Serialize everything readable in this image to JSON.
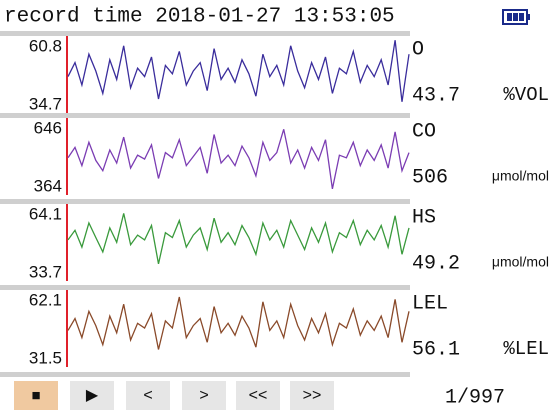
{
  "header": {
    "text": "record time 2018-01-27 13:53:05"
  },
  "chart_data": [
    {
      "type": "line",
      "name": "O",
      "current": 43.7,
      "unit": "%VOL",
      "color": "#3a2d9c",
      "ylim": [
        34.7,
        60.8
      ],
      "yticks": [
        34.7,
        60.8
      ],
      "values": [
        47,
        52,
        44,
        55,
        49,
        41,
        53,
        46,
        58,
        43,
        50,
        47,
        54,
        39,
        51,
        48,
        56,
        44,
        49,
        52,
        42,
        57,
        46,
        50,
        45,
        53,
        48,
        40,
        55,
        47,
        51,
        44,
        58,
        49,
        43,
        52,
        46,
        54,
        41,
        50,
        48,
        56,
        45,
        51,
        47,
        53,
        44,
        60,
        38,
        55
      ]
    },
    {
      "type": "line",
      "name": "CO",
      "current": 506,
      "unit": "μmol/mol",
      "color": "#7b3db3",
      "ylim": [
        364,
        646
      ],
      "yticks": [
        364,
        646
      ],
      "values": [
        500,
        540,
        470,
        560,
        490,
        450,
        530,
        480,
        580,
        460,
        510,
        495,
        550,
        420,
        520,
        500,
        570,
        470,
        505,
        540,
        440,
        590,
        480,
        510,
        470,
        545,
        500,
        430,
        560,
        490,
        520,
        610,
        480,
        530,
        460,
        540,
        490,
        570,
        380,
        510,
        500,
        560,
        470,
        530,
        490,
        550,
        460,
        600,
        450,
        520
      ]
    },
    {
      "type": "line",
      "name": "HS",
      "current": 49.2,
      "unit": "μmol/mol",
      "color": "#3a9a3c",
      "ylim": [
        33.7,
        64.1
      ],
      "yticks": [
        33.7,
        64.1
      ],
      "values": [
        50,
        54,
        47,
        57,
        51,
        45,
        55,
        49,
        61,
        48,
        52,
        50,
        56,
        40,
        53,
        51,
        58,
        47,
        52,
        55,
        46,
        59,
        49,
        53,
        48,
        56,
        51,
        44,
        57,
        50,
        54,
        47,
        58,
        52,
        46,
        55,
        49,
        57,
        45,
        53,
        51,
        58,
        48,
        54,
        50,
        56,
        47,
        60,
        44,
        55
      ]
    },
    {
      "type": "line",
      "name": "LEL",
      "current": 56.1,
      "unit": "%LEL",
      "color": "#8a4a2a",
      "ylim": [
        31.5,
        62.1
      ],
      "yticks": [
        31.5,
        62.1
      ],
      "values": [
        46,
        51,
        43,
        54,
        48,
        40,
        52,
        45,
        57,
        42,
        49,
        47,
        53,
        38,
        50,
        47,
        60,
        43,
        48,
        51,
        41,
        56,
        45,
        49,
        44,
        52,
        47,
        39,
        58,
        46,
        50,
        43,
        57,
        48,
        42,
        51,
        45,
        53,
        40,
        49,
        47,
        55,
        44,
        50,
        46,
        52,
        43,
        59,
        41,
        54
      ]
    }
  ],
  "controls": {
    "buttons": [
      "■",
      "▶",
      "<",
      ">",
      "<<",
      ">>"
    ],
    "page": "1/997"
  }
}
